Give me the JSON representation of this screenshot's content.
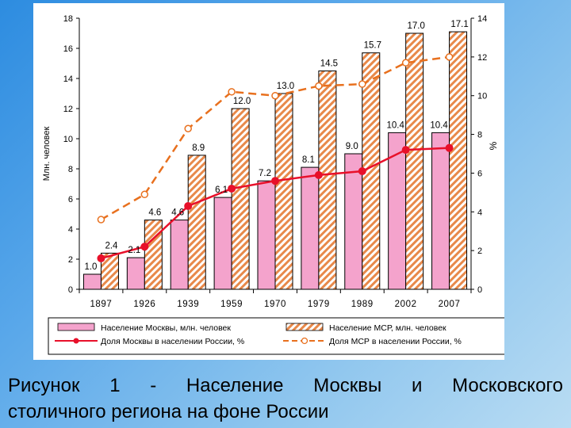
{
  "chart_data": {
    "type": "bar",
    "categories": [
      "1897",
      "1926",
      "1939",
      "1959",
      "1970",
      "1979",
      "1989",
      "2002",
      "2007"
    ],
    "y_left": {
      "label": "Млн. человек",
      "min": 0,
      "max": 18,
      "ticks": [
        0,
        2,
        4,
        6,
        8,
        10,
        12,
        14,
        16,
        18
      ]
    },
    "y_right": {
      "label": "%",
      "min": 0,
      "max": 14,
      "ticks": [
        0,
        2,
        4,
        6,
        8,
        10,
        12,
        14
      ]
    },
    "series": [
      {
        "name": "Население Москвы, млн. человек",
        "kind": "bar",
        "axis": "left",
        "color": "#f4a3cc",
        "values": [
          1.0,
          2.1,
          4.6,
          6.1,
          7.2,
          8.1,
          9.0,
          10.4,
          10.4
        ],
        "labels": [
          "1.0",
          "2.1",
          "4.6",
          "6.1",
          "7.2",
          "8.1",
          "9.0",
          "10.4",
          "10.4"
        ]
      },
      {
        "name": "Население МСР, млн. человек",
        "kind": "bar-hatched",
        "axis": "left",
        "color": "#e8894a",
        "values": [
          2.4,
          4.6,
          8.9,
          12.0,
          13.0,
          14.5,
          15.7,
          17.0,
          17.1
        ],
        "labels": [
          "2.4",
          "4.6",
          "8.9",
          "12.0",
          "13.0",
          "14.5",
          "15.7",
          "17.0",
          "17.1"
        ]
      },
      {
        "name": "Доля Москвы в населении России, %",
        "kind": "line",
        "axis": "right",
        "color": "#e8102a",
        "values": [
          1.6,
          2.2,
          4.3,
          5.2,
          5.6,
          5.9,
          6.1,
          7.2,
          7.3
        ]
      },
      {
        "name": "Доля МСР в населении России, %",
        "kind": "line-dashed",
        "axis": "right",
        "color": "#e8701e",
        "values": [
          3.6,
          4.9,
          8.3,
          10.2,
          10.0,
          10.5,
          10.6,
          11.7,
          12.0
        ]
      }
    ],
    "legend": "bottom"
  },
  "caption": {
    "line1": "Рисунок 1 - Население Москвы и Московского",
    "line2": "столичного региона на фоне России"
  }
}
